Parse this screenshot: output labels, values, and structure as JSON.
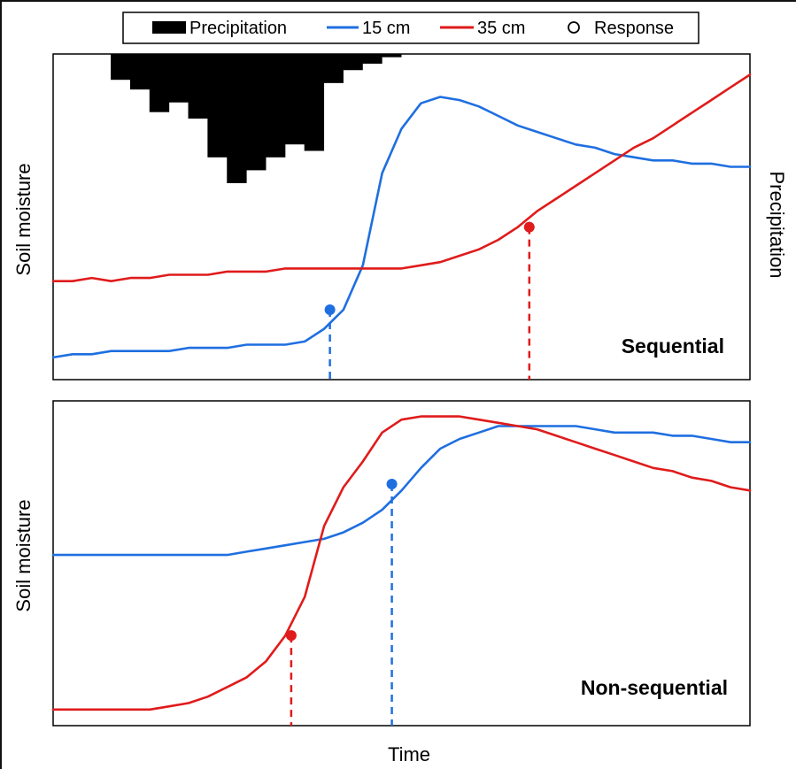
{
  "legend": {
    "items": [
      {
        "label": "Precipitation",
        "kind": "bar",
        "color": "#000000"
      },
      {
        "label": "15 cm",
        "kind": "line",
        "color": "#1f6fe0"
      },
      {
        "label": "35 cm",
        "kind": "line",
        "color": "#e01b1b"
      },
      {
        "label": "Response",
        "kind": "marker",
        "color": "#000000"
      }
    ]
  },
  "xlabel": "Time",
  "ylabel_left": "Soil moisture",
  "ylabel_right": "Precipitation",
  "colors": {
    "shallow": "#1f6fe0",
    "deep": "#e01b1b",
    "precip": "#000000"
  },
  "chart_data": [
    {
      "type": "line",
      "panel": "Sequential",
      "xlim": [
        0,
        36
      ],
      "ylim": [
        0,
        100
      ],
      "precipitation": {
        "x": [
          3,
          4,
          5,
          6,
          7,
          8,
          9,
          10,
          11,
          12,
          13,
          14,
          15,
          16,
          17
        ],
        "values": [
          8,
          11,
          18,
          15,
          20,
          32,
          40,
          36,
          32,
          28,
          30,
          9,
          5,
          3,
          1
        ]
      },
      "series": [
        {
          "name": "15 cm",
          "x": [
            0,
            1,
            2,
            3,
            4,
            5,
            6,
            7,
            8,
            9,
            10,
            11,
            12,
            13,
            14,
            15,
            16,
            17,
            18,
            19,
            20,
            21,
            22,
            23,
            24,
            25,
            26,
            27,
            28,
            29,
            30,
            31,
            32,
            33,
            34,
            35,
            36
          ],
          "y": [
            7,
            8,
            8,
            9,
            9,
            9,
            9,
            10,
            10,
            10,
            11,
            11,
            11,
            12,
            16,
            22,
            36,
            65,
            79,
            87,
            89,
            88,
            86,
            83,
            80,
            78,
            76,
            74,
            73,
            71,
            70,
            69,
            69,
            68,
            68,
            67,
            67
          ]
        },
        {
          "name": "35 cm",
          "x": [
            0,
            1,
            2,
            3,
            4,
            5,
            6,
            7,
            8,
            9,
            10,
            11,
            12,
            13,
            14,
            15,
            16,
            17,
            18,
            19,
            20,
            21,
            22,
            23,
            24,
            25,
            26,
            27,
            28,
            29,
            30,
            31,
            32,
            33,
            34,
            35,
            36
          ],
          "y": [
            31,
            31,
            32,
            31,
            32,
            32,
            33,
            33,
            33,
            34,
            34,
            34,
            35,
            35,
            35,
            35,
            35,
            35,
            35,
            36,
            37,
            39,
            41,
            44,
            48,
            53,
            57,
            61,
            65,
            69,
            73,
            76,
            80,
            84,
            88,
            92,
            96
          ]
        }
      ],
      "responses": [
        {
          "series": "15 cm",
          "x": 14.3,
          "y": 22
        },
        {
          "series": "35 cm",
          "x": 24.6,
          "y": 48
        }
      ]
    },
    {
      "type": "line",
      "panel": "Non-sequential",
      "xlim": [
        0,
        36
      ],
      "ylim": [
        0,
        100
      ],
      "series": [
        {
          "name": "15 cm",
          "x": [
            0,
            1,
            2,
            3,
            4,
            5,
            6,
            7,
            8,
            9,
            10,
            11,
            12,
            13,
            14,
            15,
            16,
            17,
            18,
            19,
            20,
            21,
            22,
            23,
            24,
            25,
            26,
            27,
            28,
            29,
            30,
            31,
            32,
            33,
            34,
            35,
            36
          ],
          "y": [
            53,
            53,
            53,
            53,
            53,
            53,
            53,
            53,
            53,
            53,
            54,
            55,
            56,
            57,
            58,
            60,
            63,
            67,
            73,
            80,
            86,
            89,
            91,
            93,
            93,
            93,
            93,
            93,
            92,
            91,
            91,
            91,
            90,
            90,
            89,
            88,
            88
          ]
        },
        {
          "name": "35 cm",
          "x": [
            0,
            1,
            2,
            3,
            4,
            5,
            6,
            7,
            8,
            9,
            10,
            11,
            12,
            13,
            14,
            15,
            16,
            17,
            18,
            19,
            20,
            21,
            22,
            23,
            24,
            25,
            26,
            27,
            28,
            29,
            30,
            31,
            32,
            33,
            34,
            35,
            36
          ],
          "y": [
            5,
            5,
            5,
            5,
            5,
            5,
            6,
            7,
            9,
            12,
            15,
            20,
            28,
            40,
            62,
            74,
            82,
            91,
            95,
            96,
            96,
            96,
            95,
            94,
            93,
            92,
            90,
            88,
            86,
            84,
            82,
            80,
            79,
            77,
            76,
            74,
            73
          ]
        }
      ],
      "responses": [
        {
          "series": "35 cm",
          "x": 12.3,
          "y": 28
        },
        {
          "series": "15 cm",
          "x": 17.5,
          "y": 75
        }
      ]
    }
  ]
}
